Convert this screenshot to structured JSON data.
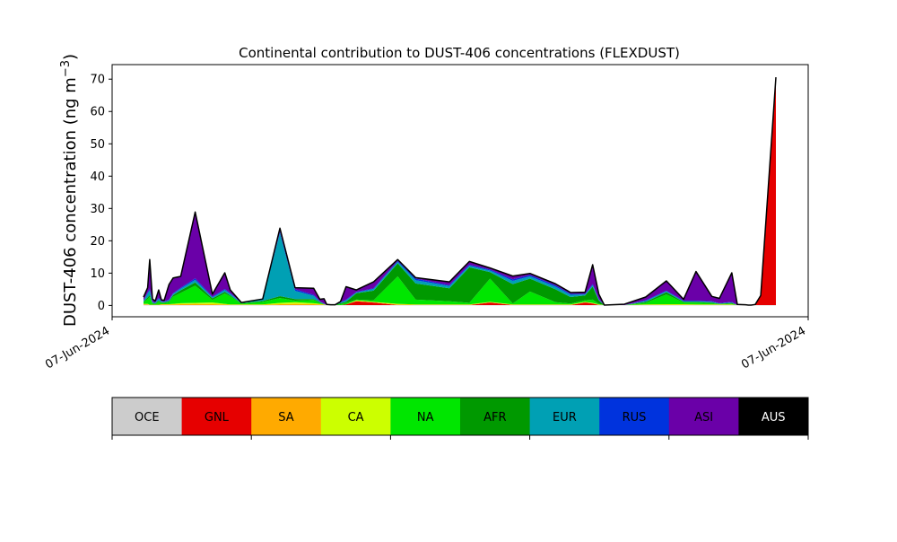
{
  "chart_data": {
    "type": "area",
    "stacked": true,
    "title": "Continental contribution to DUST-406 concentrations (FLEXDUST)",
    "ylabel_main": "DUST-406 concentration (ng m",
    "ylabel_sup": "−3",
    "ylabel_close": ")",
    "xlabel": "",
    "xticklabels": [
      "07-Jun-2024",
      "07-Jun-2024"
    ],
    "ylim": [
      -3.5,
      74.5
    ],
    "yticks": [
      0,
      10,
      20,
      30,
      40,
      50,
      60,
      70
    ],
    "grid": false,
    "x": [
      0,
      0.6,
      0.9,
      1.3,
      1.7,
      2.2,
      2.6,
      3.0,
      3.7,
      4.3,
      5.4,
      7.5,
      10.0,
      11.8,
      12.6,
      14.2,
      17.3,
      19.8,
      22.0,
      24.7,
      25.6,
      26.2,
      26.6,
      27.2,
      27.8,
      28.6,
      29.4,
      30.9,
      33.4,
      36.9,
      39.5,
      44.4,
      47.3,
      50.3,
      53.6,
      56.1,
      59.8,
      62.0,
      64.1,
      65.2,
      66.1,
      66.9,
      69.8,
      72.9,
      75.9,
      78.4,
      80.2,
      82.5,
      83.6,
      85.4,
      86.2,
      87.4,
      87.8,
      88.2,
      88.8,
      89.6,
      91.8
    ],
    "series": [
      {
        "name": "OCE",
        "color": "#cccccc",
        "values": [
          0.2,
          0.2,
          0.1,
          0.1,
          0.1,
          0.1,
          0.1,
          0.1,
          0.1,
          0.1,
          0.1,
          0.1,
          0.1,
          0.1,
          0.1,
          0.1,
          0.1,
          0.1,
          0.1,
          0.1,
          0.1,
          0.1,
          0.1,
          0.1,
          0.1,
          0.1,
          0.1,
          0.1,
          0.1,
          0.1,
          0.1,
          0.1,
          0.1,
          0.1,
          0.1,
          0.1,
          0.1,
          0.1,
          0.1,
          0.1,
          0.1,
          0.1,
          0.1,
          0.1,
          0.1,
          0.1,
          0.1,
          0.1,
          0.1,
          0.1,
          0.1,
          0.1,
          0.1,
          0.1,
          0.1,
          0.1,
          0.1
        ]
      },
      {
        "name": "GNL",
        "color": "#e60000",
        "values": [
          0,
          0,
          0,
          0,
          0,
          0,
          0,
          0,
          0,
          0,
          0,
          0,
          0,
          0,
          0,
          0,
          0,
          0,
          0,
          0,
          0,
          0,
          0,
          0,
          0,
          0,
          0.2,
          1.2,
          0.8,
          0,
          0,
          0,
          0,
          0.8,
          0,
          0,
          0,
          0,
          0.8,
          0.5,
          0,
          0,
          0,
          0,
          0,
          0,
          0,
          0,
          0,
          0,
          0,
          0,
          0,
          0,
          0,
          3,
          70.5
        ]
      },
      {
        "name": "SA",
        "color": "#ffaa00",
        "values": [
          0.2,
          0.2,
          0.1,
          0.1,
          0.1,
          0.1,
          0.2,
          0.2,
          0.2,
          0.2,
          0.3,
          0.4,
          0.3,
          0.2,
          0.1,
          0.1,
          0.1,
          0.3,
          0.4,
          0.3,
          0.2,
          0.1,
          0,
          0,
          0,
          0,
          0,
          0.1,
          0.1,
          0.2,
          0.1,
          0.1,
          0.1,
          0.1,
          0.1,
          0.1,
          0.1,
          0.1,
          0.1,
          0.1,
          0.1,
          0,
          0,
          0.1,
          0.1,
          0.1,
          0.1,
          0.1,
          0.1,
          0.1,
          0,
          0,
          0,
          0,
          0,
          0,
          0
        ]
      },
      {
        "name": "CA",
        "color": "#ccff00",
        "values": [
          0.1,
          0.1,
          0,
          0,
          0,
          0,
          0.1,
          0.1,
          0.1,
          0.2,
          0.3,
          0.3,
          0.5,
          0.2,
          0.1,
          0.1,
          0.1,
          0.4,
          0.5,
          0.3,
          0.2,
          0.1,
          0,
          0,
          0,
          0,
          0,
          0.2,
          0.1,
          0.2,
          0.1,
          0.1,
          0.1,
          0.1,
          0.1,
          0.1,
          0.1,
          0.1,
          0.1,
          0.1,
          0.1,
          0,
          0,
          0.1,
          0.2,
          0.2,
          0.1,
          0.1,
          0.1,
          0.1,
          0,
          0,
          0,
          0,
          0,
          0,
          0
        ]
      },
      {
        "name": "NA",
        "color": "#00e600",
        "values": [
          0.5,
          1.5,
          2.5,
          0.3,
          0.2,
          1.0,
          0.3,
          0.3,
          0.6,
          2.2,
          3.2,
          5.3,
          0.8,
          3.2,
          2.5,
          0.3,
          0.8,
          1.5,
          0.5,
          1.0,
          0.3,
          0,
          0,
          0,
          0,
          0.3,
          0.5,
          0.2,
          0.5,
          8.5,
          1.5,
          1.0,
          0.5,
          7.2,
          0.3,
          4.0,
          0.7,
          0.3,
          0.5,
          1.0,
          0.2,
          0,
          0,
          0.5,
          3.0,
          0.5,
          0.6,
          0.4,
          0.2,
          0.3,
          0,
          0,
          0,
          0,
          0,
          0,
          0
        ]
      },
      {
        "name": "AFR",
        "color": "#009900",
        "values": [
          0.2,
          0.5,
          0.5,
          0.2,
          0.2,
          0.3,
          0.2,
          0.2,
          0.3,
          0.5,
          0.8,
          1.0,
          0.5,
          0.5,
          0.3,
          0.1,
          0.3,
          0.6,
          0.5,
          0.3,
          0.2,
          0.1,
          0,
          0,
          0,
          0.3,
          0.3,
          2.0,
          3.0,
          4.0,
          5.0,
          4.0,
          11.0,
          2.0,
          6.0,
          4.0,
          4.0,
          2.0,
          1.5,
          4.0,
          1.0,
          0,
          0,
          0.3,
          0.7,
          0.2,
          0.2,
          0.2,
          0,
          0.2,
          0,
          0,
          0,
          0,
          0,
          0,
          0
        ]
      },
      {
        "name": "EUR",
        "color": "#00a0b4",
        "values": [
          0.3,
          1.2,
          1.5,
          0.3,
          0.2,
          0.6,
          0.3,
          0.2,
          0.3,
          0.4,
          0.5,
          0.8,
          0.3,
          0.6,
          0.5,
          0.1,
          0.4,
          19.5,
          2.5,
          1.0,
          0.2,
          0.1,
          0,
          0,
          0,
          0.2,
          0.5,
          0.2,
          0.5,
          0.5,
          1.0,
          0.7,
          0.5,
          0.5,
          1.0,
          0.7,
          0.8,
          0.7,
          0.3,
          0.5,
          0.3,
          0,
          0,
          0.3,
          0.3,
          0.2,
          0.2,
          0.2,
          0.1,
          0.1,
          0,
          0,
          0,
          0,
          0,
          0,
          0
        ]
      },
      {
        "name": "RUS",
        "color": "#0033dd",
        "values": [
          0.1,
          0.3,
          0.5,
          0.1,
          0.1,
          0.3,
          0.1,
          0.1,
          0.2,
          0.2,
          0.3,
          0.5,
          0.2,
          0.3,
          0.2,
          0.1,
          0.1,
          0.5,
          0.5,
          0.3,
          0.1,
          0.1,
          0,
          0,
          0,
          0.1,
          0.2,
          0.2,
          0.2,
          0.3,
          0.5,
          0.3,
          0.3,
          0.3,
          0.5,
          0.4,
          0.4,
          0.3,
          0.2,
          0.3,
          0.2,
          0,
          0,
          0.2,
          0.2,
          0.2,
          0.2,
          0.2,
          0.1,
          0.2,
          0,
          0,
          0,
          0,
          0,
          0,
          0
        ]
      },
      {
        "name": "ASI",
        "color": "#6a00a8",
        "values": [
          1.0,
          1.5,
          9.0,
          0.9,
          0.5,
          2.4,
          0.4,
          0.4,
          4.7,
          4.7,
          3.5,
          20.5,
          0.8,
          5.0,
          1.0,
          0.0,
          0.1,
          1.0,
          0.5,
          2.0,
          0.6,
          1.5,
          0.2,
          0.1,
          0.1,
          0.2,
          4.0,
          0.6,
          2.0,
          0.4,
          0.3,
          1.0,
          1.0,
          0.5,
          1.0,
          0.5,
          0.5,
          0.4,
          0.5,
          6.0,
          1.5,
          0,
          0.3,
          1.0,
          3.0,
          0.4,
          9.0,
          1.5,
          1.5,
          9.0,
          0.2,
          0.1,
          0,
          0,
          0.2,
          0,
          0
        ]
      },
      {
        "name": "AUS",
        "color": "#000000",
        "values": [
          0,
          0,
          0,
          0,
          0,
          0,
          0,
          0,
          0,
          0,
          0,
          0,
          0,
          0,
          0,
          0,
          0,
          0,
          0,
          0,
          0,
          0,
          0,
          0,
          0,
          0,
          0,
          0,
          0,
          0,
          0,
          0,
          0,
          0,
          0,
          0,
          0,
          0,
          0,
          0,
          0,
          0,
          0,
          0,
          0,
          0,
          0,
          0,
          0,
          0,
          0,
          0,
          0,
          0,
          0,
          0,
          0
        ]
      }
    ]
  },
  "legend": {
    "items": [
      {
        "label": "OCE",
        "color": "#cccccc"
      },
      {
        "label": "GNL",
        "color": "#e60000"
      },
      {
        "label": "SA",
        "color": "#ffaa00"
      },
      {
        "label": "CA",
        "color": "#ccff00"
      },
      {
        "label": "NA",
        "color": "#00e600"
      },
      {
        "label": "AFR",
        "color": "#009900"
      },
      {
        "label": "EUR",
        "color": "#00a0b4"
      },
      {
        "label": "RUS",
        "color": "#0033dd"
      },
      {
        "label": "ASI",
        "color": "#6a00a8"
      },
      {
        "label": "AUS",
        "color": "#000000"
      }
    ]
  }
}
